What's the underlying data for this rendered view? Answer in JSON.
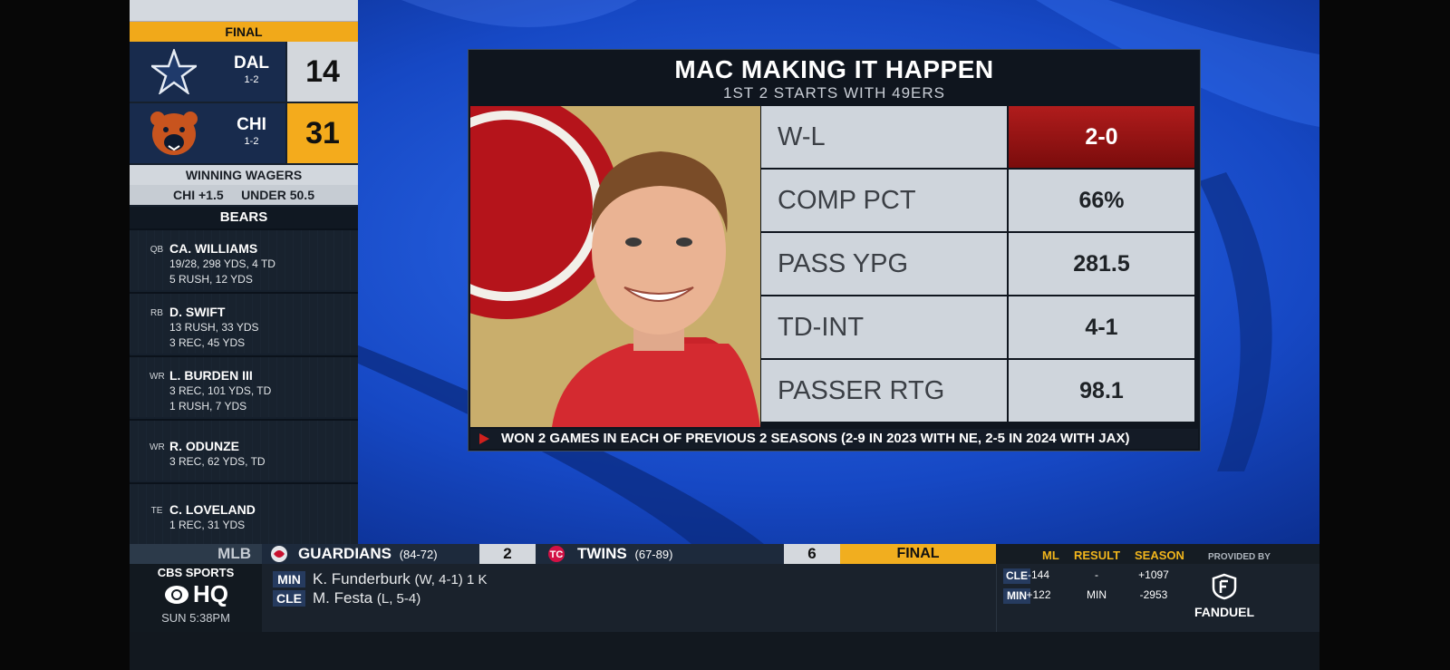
{
  "sidebar": {
    "status": "FINAL",
    "teams": [
      {
        "abbr": "DAL",
        "record": "1-2",
        "score": "14",
        "logo": "cowboys-star-icon"
      },
      {
        "abbr": "CHI",
        "record": "1-2",
        "score": "31",
        "logo": "bears-head-icon"
      }
    ],
    "wagers_title": "WINNING WAGERS",
    "wagers": "CHI +1.5     UNDER 50.5",
    "team_section": "BEARS",
    "players": [
      {
        "pos": "QB",
        "name": "CA. WILLIAMS",
        "line1": "19/28, 298 YDS, 4 TD",
        "line2": "5 RUSH, 12 YDS"
      },
      {
        "pos": "RB",
        "name": "D. SWIFT",
        "line1": "13 RUSH, 33 YDS",
        "line2": "3 REC, 45 YDS"
      },
      {
        "pos": "WR",
        "name": "L. BURDEN III",
        "line1": "3 REC, 101 YDS, TD",
        "line2": "1 RUSH, 7 YDS"
      },
      {
        "pos": "WR",
        "name": "R. ODUNZE",
        "line1": "3 REC, 62 YDS, TD",
        "line2": ""
      },
      {
        "pos": "TE",
        "name": "C. LOVELAND",
        "line1": "1 REC, 31 YDS",
        "line2": ""
      }
    ]
  },
  "card": {
    "title": "MAC MAKING IT HAPPEN",
    "subtitle": "1ST 2 STARTS WITH 49ERS",
    "stats": [
      {
        "label": "W-L",
        "value": "2-0",
        "highlight": true
      },
      {
        "label": "COMP PCT",
        "value": "66%"
      },
      {
        "label": "PASS YPG",
        "value": "281.5"
      },
      {
        "label": "TD-INT",
        "value": "4-1"
      },
      {
        "label": "PASSER RTG",
        "value": "98.1"
      }
    ],
    "note": "WON 2 GAMES IN EACH OF PREVIOUS 2 SEASONS (2-9 IN 2023 WITH NE, 2-5 IN 2024 WITH JAX)"
  },
  "ticker": {
    "league": "MLB",
    "away": {
      "name": "GUARDIANS",
      "record": "(84-72)",
      "score": "2"
    },
    "home": {
      "name": "TWINS",
      "record": "(67-89)",
      "score": "6"
    },
    "status": "FINAL",
    "network": {
      "line1": "CBS SPORTS",
      "line2": "HQ",
      "time": "SUN 5:38PM"
    },
    "pitchers": [
      {
        "team": "MIN",
        "name": "K. Funderburk",
        "detail": "(W, 4-1) 1 K"
      },
      {
        "team": "CLE",
        "name": "M. Festa",
        "detail": "(L, 5-4)"
      }
    ],
    "odds": {
      "headers": [
        "ML",
        "RESULT",
        "SEASON"
      ],
      "rows": [
        {
          "team": "CLE",
          "ml": "-144",
          "result": "-",
          "season": "+1097"
        },
        {
          "team": "MIN",
          "ml": "+122",
          "result": "MIN",
          "season": "-2953"
        }
      ]
    },
    "sponsor": {
      "label": "PROVIDED BY",
      "name": "FANDUEL"
    }
  },
  "colors": {
    "accent": "#f1a91a",
    "winner_red": "#b01c1c",
    "bg_blue": "#0e3ca8"
  }
}
